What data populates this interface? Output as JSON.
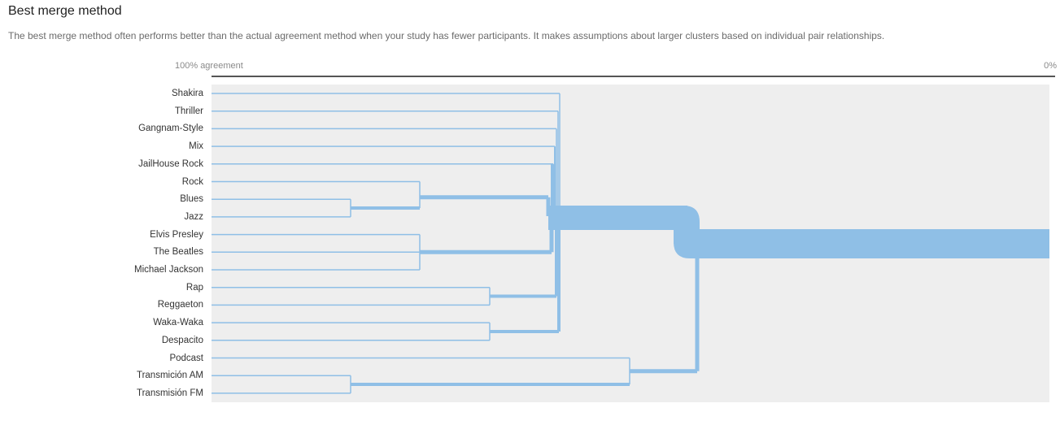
{
  "header": {
    "title": "Best merge method",
    "description": "The best merge method often performs better than the actual agreement method when your study has fewer participants. It makes assumptions about larger clusters based on individual pair relationships."
  },
  "axis": {
    "left_label": "100% agreement",
    "right_label": "0%"
  },
  "leaves": [
    "Shakira",
    "Thriller",
    "Gangnam-Style",
    "Mix",
    "JailHouse Rock",
    "Rock",
    "Blues",
    "Jazz",
    "Elvis Presley",
    "The Beatles",
    "Michael Jackson",
    "Rap",
    "Reggaeton",
    "Waka-Waka",
    "Despacito",
    "Podcast",
    "Transmición AM",
    "Transmisión FM"
  ],
  "colors": {
    "branch": "#8fbfe6",
    "plot_background": "#eeeeee",
    "axis_line": "#555555"
  }
}
